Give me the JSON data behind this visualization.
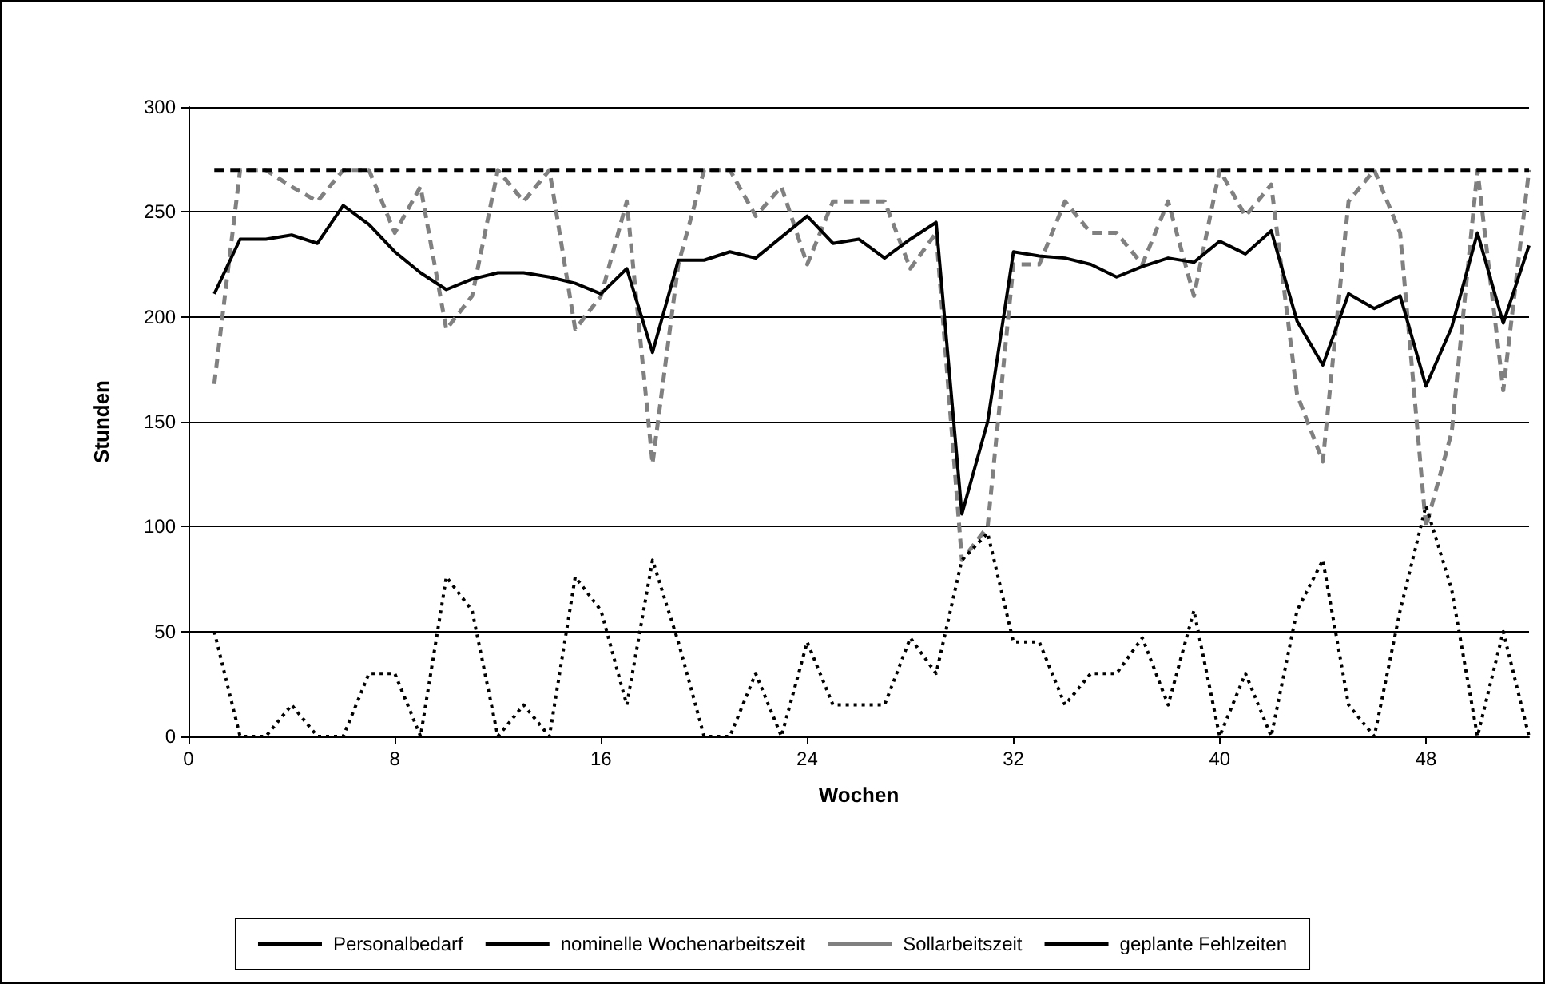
{
  "chart_data": {
    "type": "line",
    "xlabel": "Wochen",
    "ylabel": "Stunden",
    "x": [
      1,
      2,
      3,
      4,
      5,
      6,
      7,
      8,
      9,
      10,
      11,
      12,
      13,
      14,
      15,
      16,
      17,
      18,
      19,
      20,
      21,
      22,
      23,
      24,
      25,
      26,
      27,
      28,
      29,
      30,
      31,
      32,
      33,
      34,
      35,
      36,
      37,
      38,
      39,
      40,
      41,
      42,
      43,
      44,
      45,
      46,
      47,
      48,
      49,
      50,
      51,
      52
    ],
    "series": [
      {
        "name": "Personalbedarf",
        "color": "#000000",
        "line_style": "solid",
        "values": [
          211,
          237,
          237,
          239,
          235,
          253,
          244,
          231,
          221,
          213,
          218,
          221,
          221,
          219,
          216,
          211,
          223,
          183,
          227,
          227,
          231,
          228,
          238,
          248,
          235,
          237,
          228,
          237,
          245,
          106,
          150,
          231,
          229,
          228,
          225,
          219,
          224,
          228,
          226,
          236,
          230,
          241,
          198,
          177,
          211,
          204,
          210,
          167,
          195,
          240,
          197,
          234
        ]
      },
      {
        "name": "nominelle Wochenarbeitszeit",
        "color": "#000000",
        "line_style": "dashed",
        "values": [
          270,
          270,
          270,
          270,
          270,
          270,
          270,
          270,
          270,
          270,
          270,
          270,
          270,
          270,
          270,
          270,
          270,
          270,
          270,
          270,
          270,
          270,
          270,
          270,
          270,
          270,
          270,
          270,
          270,
          270,
          270,
          270,
          270,
          270,
          270,
          270,
          270,
          270,
          270,
          270,
          270,
          270,
          270,
          270,
          270,
          270,
          270,
          270,
          270,
          270,
          270,
          270
        ]
      },
      {
        "name": "Sollarbeitszeit",
        "color": "#808080",
        "line_style": "dashed",
        "values": [
          168,
          270,
          270,
          262,
          255,
          270,
          270,
          240,
          262,
          194,
          210,
          270,
          255,
          270,
          194,
          210,
          255,
          130,
          225,
          270,
          270,
          248,
          262,
          225,
          255,
          255,
          255,
          223,
          240,
          84,
          100,
          225,
          225,
          255,
          240,
          240,
          225,
          255,
          210,
          270,
          248,
          263,
          163,
          131,
          255,
          270,
          240,
          100,
          145,
          270,
          165,
          270
        ]
      },
      {
        "name": "geplante Fehlzeiten",
        "color": "#000000",
        "line_style": "dotted",
        "values": [
          50,
          0,
          0,
          15,
          0,
          0,
          30,
          30,
          0,
          76,
          60,
          0,
          15,
          0,
          76,
          60,
          15,
          84,
          45,
          0,
          0,
          30,
          0,
          45,
          15,
          15,
          15,
          47,
          30,
          84,
          97,
          45,
          45,
          15,
          30,
          30,
          47,
          15,
          60,
          0,
          30,
          0,
          60,
          84,
          15,
          0,
          60,
          110,
          70,
          0,
          50,
          0
        ]
      }
    ],
    "xlim": [
      0,
      52
    ],
    "xticks": [
      0,
      8,
      16,
      24,
      32,
      40,
      48
    ],
    "ylim": [
      0,
      300
    ],
    "yticks": [
      0,
      50,
      100,
      150,
      200,
      250,
      300
    ],
    "grid": "y",
    "legend": "bottom",
    "marker": "none"
  }
}
